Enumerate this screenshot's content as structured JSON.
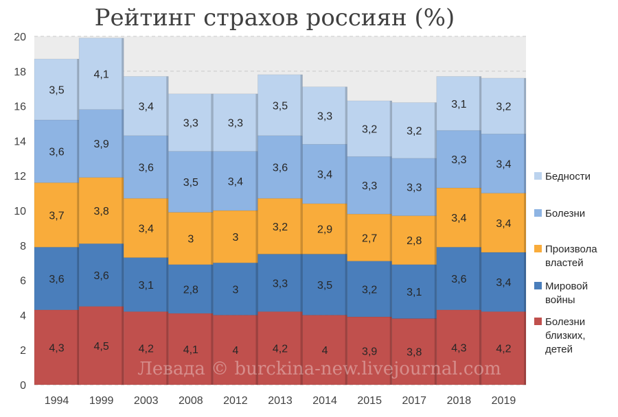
{
  "title": "Рейтинг страхов россиян (%)",
  "watermark": "Левада © burckina-new.livejournal.com",
  "chart_data": {
    "type": "bar",
    "stacked": true,
    "title": "Рейтинг страхов россиян (%)",
    "categories": [
      "1994",
      "1999",
      "2003",
      "2008",
      "2012",
      "2013",
      "2014",
      "2015",
      "2017",
      "2018",
      "2019"
    ],
    "ylim": [
      0,
      20
    ],
    "yticks": [
      "0",
      "2",
      "4",
      "6",
      "8",
      "10",
      "12",
      "14",
      "16",
      "18",
      "20"
    ],
    "grid": true,
    "legend_position": "right",
    "series": [
      {
        "name": "Болезни близких, детей",
        "legend_lines": [
          "Болезни",
          "близких,",
          "детей"
        ],
        "color": "#c0504d",
        "values": [
          4.3,
          4.5,
          4.2,
          4.1,
          4,
          4.2,
          4,
          3.9,
          3.8,
          4.3,
          4.2
        ],
        "labels": [
          "4,3",
          "4,5",
          "4,2",
          "4,1",
          "4",
          "4,2",
          "4",
          "3,9",
          "3,8",
          "4,3",
          "4,2"
        ]
      },
      {
        "name": "Мировой войны",
        "legend_lines": [
          "Мировой",
          "войны"
        ],
        "color": "#4a7ebb",
        "values": [
          3.6,
          3.6,
          3.1,
          2.8,
          3,
          3.3,
          3.5,
          3.2,
          3.1,
          3.6,
          3.4
        ],
        "labels": [
          "3,6",
          "3,6",
          "3,1",
          "2,8",
          "3",
          "3,3",
          "3,5",
          "3,2",
          "3,1",
          "3,6",
          "3,4"
        ]
      },
      {
        "name": "Произвола властей",
        "legend_lines": [
          "Произвола",
          "властей"
        ],
        "color": "#f9ac3b",
        "values": [
          3.7,
          3.8,
          3.4,
          3,
          3,
          3.2,
          2.9,
          2.7,
          2.8,
          3.4,
          3.4
        ],
        "labels": [
          "3,7",
          "3,8",
          "3,4",
          "3",
          "3",
          "3,2",
          "2,9",
          "2,7",
          "2,8",
          "3,4",
          "3,4"
        ]
      },
      {
        "name": "Болезни",
        "legend_lines": [
          "Болезни"
        ],
        "color": "#8eb4e3",
        "values": [
          3.6,
          3.9,
          3.6,
          3.5,
          3.4,
          3.6,
          3.4,
          3.3,
          3.3,
          3.3,
          3.4
        ],
        "labels": [
          "3,6",
          "3,9",
          "3,6",
          "3,5",
          "3,4",
          "3,6",
          "3,4",
          "3,3",
          "3,3",
          "3,3",
          "3,4"
        ]
      },
      {
        "name": "Бедности",
        "legend_lines": [
          "Бедности"
        ],
        "color": "#bcd3ee",
        "values": [
          3.5,
          4.1,
          3.4,
          3.3,
          3.3,
          3.5,
          3.3,
          3.2,
          3.2,
          3.1,
          3.2
        ],
        "labels": [
          "3,5",
          "4,1",
          "3,4",
          "3,3",
          "3,3",
          "3,5",
          "3,3",
          "3,2",
          "3,2",
          "3,1",
          "3,2"
        ]
      }
    ]
  }
}
